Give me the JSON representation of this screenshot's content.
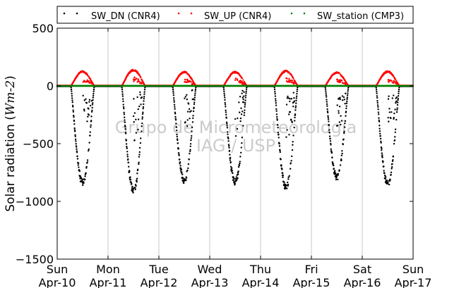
{
  "chart_data": {
    "type": "scatter",
    "ylabel_prefix": "Solar radiation (",
    "ylabel_math": "Wm-2",
    "ylabel_suffix": ")",
    "ylim": [
      -1500,
      500
    ],
    "yticks": [
      500,
      0,
      -500,
      -1000,
      -1500
    ],
    "ytick_labels": [
      "500",
      "0",
      "−500",
      "−1000",
      "−1500"
    ],
    "xlim": [
      "2000-04-10 00:00",
      "2000-04-17 00:00"
    ],
    "xticks": [
      {
        "day": "Sun",
        "date": "Apr-10"
      },
      {
        "day": "Mon",
        "date": "Apr-11"
      },
      {
        "day": "Tue",
        "date": "Apr-12"
      },
      {
        "day": "Wed",
        "date": "Apr-13"
      },
      {
        "day": "Thu",
        "date": "Apr-14"
      },
      {
        "day": "Fri",
        "date": "Apr-15"
      },
      {
        "day": "Sat",
        "date": "Apr-16"
      },
      {
        "day": "Sun",
        "date": "Apr-17"
      }
    ],
    "grid": "vertical",
    "legend_placement": "top",
    "watermark": [
      "Grupo de Micrometeorologia",
      "IAG / USP"
    ],
    "series": [
      {
        "name": "SW_DN (CNR4)",
        "color": "#000000",
        "daily_minimum": [
          -870,
          -940,
          -850,
          -860,
          -910,
          -820,
          -880
        ]
      },
      {
        "name": "SW_UP (CNR4)",
        "color": "#ff0000",
        "daily_maximum": [
          130,
          145,
          125,
          125,
          135,
          120,
          130
        ]
      },
      {
        "name": "SW_station (CMP3)",
        "color": "#008000"
      }
    ]
  }
}
